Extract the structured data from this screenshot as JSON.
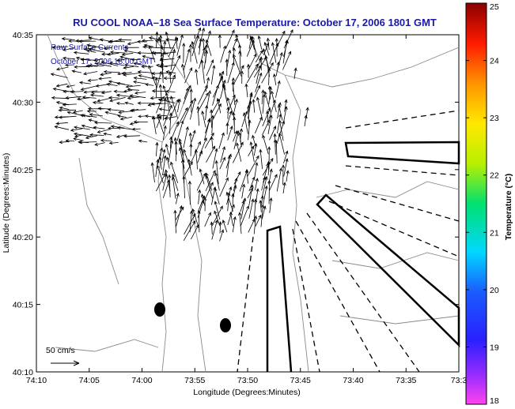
{
  "chart_data": {
    "type": "map",
    "title": "RU COOL  NOAA–18  Sea Surface Temperature:  October 17, 2006 1801 GMT",
    "annotations": [
      "Raw Surface Currents",
      "October 17, 2006 18:00 GMT"
    ],
    "xlabel": "Longitude (Degrees:Minutes)",
    "ylabel": "Latitude (Degrees:Minutes)",
    "x_ticks": [
      "74:10",
      "74:05",
      "74:00",
      "73:55",
      "73:50",
      "73:45",
      "73:40",
      "73:35",
      "73:3"
    ],
    "y_ticks": [
      "40:10",
      "40:15",
      "40:20",
      "40:25",
      "40:30",
      "40:35"
    ],
    "xlim_minutes_west": [
      4450,
      4410
    ],
    "ylim_minutes_north": [
      2410,
      2435
    ],
    "scale_label": "50 cm/s",
    "colorbar": {
      "label": "Temperature (°C)",
      "ticks": [
        "18",
        "19",
        "20",
        "21",
        "22",
        "23",
        "24",
        "25"
      ],
      "range": [
        18,
        25
      ]
    },
    "grid": false
  }
}
